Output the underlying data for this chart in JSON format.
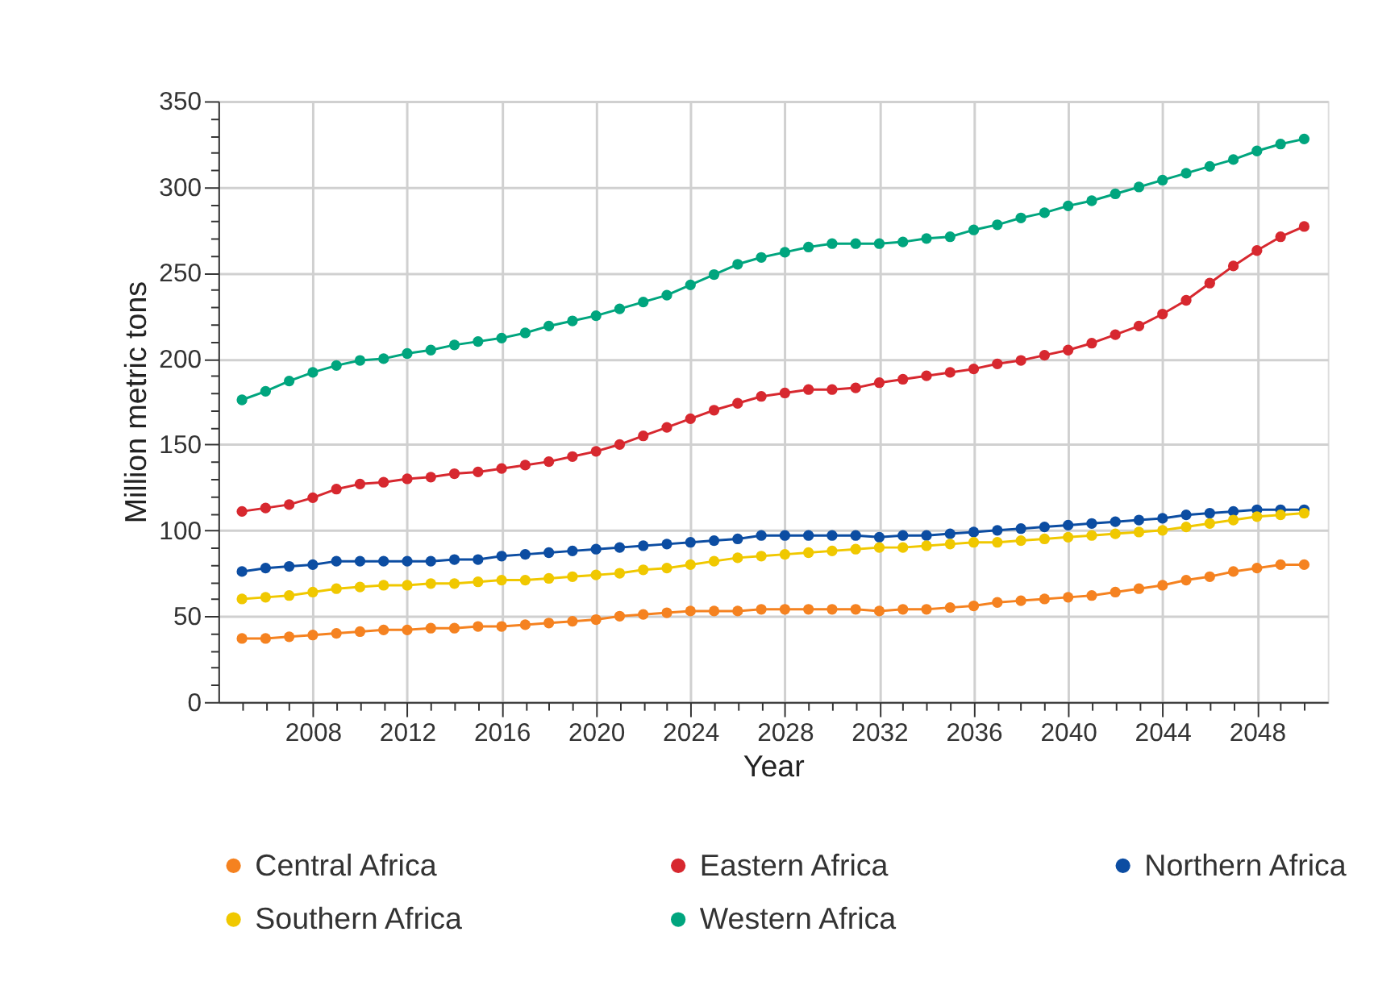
{
  "chart_data": {
    "type": "line",
    "xlabel": "Year",
    "ylabel": "Million metric tons",
    "x": [
      2005,
      2006,
      2007,
      2008,
      2009,
      2010,
      2011,
      2012,
      2013,
      2014,
      2015,
      2016,
      2017,
      2018,
      2019,
      2020,
      2021,
      2022,
      2023,
      2024,
      2025,
      2026,
      2027,
      2028,
      2029,
      2030,
      2031,
      2032,
      2033,
      2034,
      2035,
      2036,
      2037,
      2038,
      2039,
      2040,
      2041,
      2042,
      2043,
      2044,
      2045,
      2046,
      2047,
      2048,
      2049,
      2050
    ],
    "series": [
      {
        "name": "Central Africa",
        "color": "#f58220",
        "values": [
          37,
          37,
          38,
          39,
          40,
          41,
          42,
          42,
          43,
          43,
          44,
          44,
          45,
          46,
          47,
          48,
          50,
          51,
          52,
          53,
          53,
          53,
          54,
          54,
          54,
          54,
          54,
          53,
          54,
          54,
          55,
          56,
          58,
          59,
          60,
          61,
          62,
          64,
          66,
          68,
          71,
          73,
          76,
          78,
          80,
          80
        ]
      },
      {
        "name": "Eastern Africa",
        "color": "#d7282f",
        "values": [
          111,
          113,
          115,
          119,
          124,
          127,
          128,
          130,
          131,
          133,
          134,
          136,
          138,
          140,
          143,
          146,
          150,
          155,
          160,
          165,
          170,
          174,
          178,
          180,
          182,
          182,
          183,
          186,
          188,
          190,
          192,
          194,
          197,
          199,
          202,
          205,
          209,
          214,
          219,
          226,
          234,
          244,
          254,
          263,
          271,
          277
        ]
      },
      {
        "name": "Northern Africa",
        "color": "#0c4da2",
        "values": [
          76,
          78,
          79,
          80,
          82,
          82,
          82,
          82,
          82,
          83,
          83,
          85,
          86,
          87,
          88,
          89,
          90,
          91,
          92,
          93,
          94,
          95,
          97,
          97,
          97,
          97,
          97,
          96,
          97,
          97,
          98,
          99,
          100,
          101,
          102,
          103,
          104,
          105,
          106,
          107,
          109,
          110,
          111,
          112,
          112,
          112
        ]
      },
      {
        "name": "Southern Africa",
        "color": "#f0c800",
        "values": [
          60,
          61,
          62,
          64,
          66,
          67,
          68,
          68,
          69,
          69,
          70,
          71,
          71,
          72,
          73,
          74,
          75,
          77,
          78,
          80,
          82,
          84,
          85,
          86,
          87,
          88,
          89,
          90,
          90,
          91,
          92,
          93,
          93,
          94,
          95,
          96,
          97,
          98,
          99,
          100,
          102,
          104,
          106,
          108,
          109,
          110
        ]
      },
      {
        "name": "Western Africa",
        "color": "#00a57e",
        "values": [
          176,
          181,
          187,
          192,
          196,
          199,
          200,
          203,
          205,
          208,
          210,
          212,
          215,
          219,
          222,
          225,
          229,
          233,
          237,
          243,
          249,
          255,
          259,
          262,
          265,
          267,
          267,
          267,
          268,
          270,
          271,
          275,
          278,
          282,
          285,
          289,
          292,
          296,
          300,
          304,
          308,
          312,
          316,
          321,
          325,
          328
        ]
      }
    ],
    "xlim": [
      2004,
      2051
    ],
    "xticks": [
      {
        "value": 2005,
        "label": null
      },
      {
        "value": 2006,
        "label": null
      },
      {
        "value": 2007,
        "label": null
      },
      2008,
      {
        "value": 2009,
        "label": null
      },
      {
        "value": 2010,
        "label": null
      },
      {
        "value": 2011,
        "label": null
      },
      2012,
      {
        "value": 2013,
        "label": null
      },
      {
        "value": 2014,
        "label": null
      },
      {
        "value": 2015,
        "label": null
      },
      2016,
      {
        "value": 2017,
        "label": null
      },
      {
        "value": 2018,
        "label": null
      },
      {
        "value": 2019,
        "label": null
      },
      2020,
      {
        "value": 2021,
        "label": null
      },
      {
        "value": 2022,
        "label": null
      },
      {
        "value": 2023,
        "label": null
      },
      2024,
      {
        "value": 2025,
        "label": null
      },
      {
        "value": 2026,
        "label": null
      },
      {
        "value": 2027,
        "label": null
      },
      2028,
      {
        "value": 2029,
        "label": null
      },
      {
        "value": 2030,
        "label": null
      },
      {
        "value": 2031,
        "label": null
      },
      2032,
      {
        "value": 2033,
        "label": null
      },
      {
        "value": 2034,
        "label": null
      },
      {
        "value": 2035,
        "label": null
      },
      2036,
      {
        "value": 2037,
        "label": null
      },
      {
        "value": 2038,
        "label": null
      },
      {
        "value": 2039,
        "label": null
      },
      2040,
      {
        "value": 2041,
        "label": null
      },
      {
        "value": 2042,
        "label": null
      },
      {
        "value": 2043,
        "label": null
      },
      2044,
      {
        "value": 2045,
        "label": null
      },
      {
        "value": 2046,
        "label": null
      },
      {
        "value": 2047,
        "label": null
      },
      2048,
      {
        "value": 2049,
        "label": null
      },
      {
        "value": 2050,
        "label": null
      }
    ],
    "ylim": [
      0,
      350
    ],
    "yticks": [
      0,
      {
        "value": 10,
        "label": null
      },
      {
        "value": 20,
        "label": null
      },
      {
        "value": 30,
        "label": null
      },
      {
        "value": 40,
        "label": null
      },
      50,
      {
        "value": 60,
        "label": null
      },
      {
        "value": 70,
        "label": null
      },
      {
        "value": 80,
        "label": null
      },
      {
        "value": 90,
        "label": null
      },
      100,
      {
        "value": 110,
        "label": null
      },
      {
        "value": 120,
        "label": null
      },
      {
        "value": 130,
        "label": null
      },
      {
        "value": 140,
        "label": null
      },
      150,
      {
        "value": 160,
        "label": null
      },
      {
        "value": 170,
        "label": null
      },
      {
        "value": 180,
        "label": null
      },
      {
        "value": 190,
        "label": null
      },
      200,
      {
        "value": 210,
        "label": null
      },
      {
        "value": 220,
        "label": null
      },
      {
        "value": 230,
        "label": null
      },
      {
        "value": 240,
        "label": null
      },
      250,
      {
        "value": 260,
        "label": null
      },
      {
        "value": 270,
        "label": null
      },
      {
        "value": 280,
        "label": null
      },
      {
        "value": 290,
        "label": null
      },
      300,
      {
        "value": 310,
        "label": null
      },
      {
        "value": 320,
        "label": null
      },
      {
        "value": 330,
        "label": null
      },
      {
        "value": 340,
        "label": null
      },
      350
    ],
    "grid": true,
    "legend": "bottom",
    "marker": "circle",
    "line_style": "solid"
  }
}
